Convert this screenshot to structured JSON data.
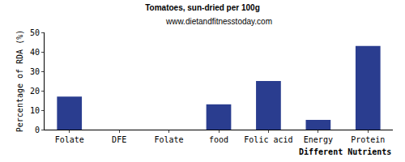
{
  "chart_data": {
    "type": "bar",
    "title": "Tomatoes, sun-dried per 100g",
    "subtitle": "www.dietandfitnesstoday.com",
    "x_label": "Different Nutrients",
    "y_label": "Percentage of RDA (%)",
    "categories": [
      "Folate",
      "DFE",
      "Folate",
      "food",
      "Folic acid",
      "Energy",
      "Protein"
    ],
    "values": [
      17,
      0,
      0,
      13,
      25,
      5,
      43
    ],
    "color": "#2a3d8f",
    "ylim": [
      0,
      50
    ],
    "yticks": [
      0,
      10,
      20,
      30,
      40,
      50
    ],
    "grid": false
  }
}
